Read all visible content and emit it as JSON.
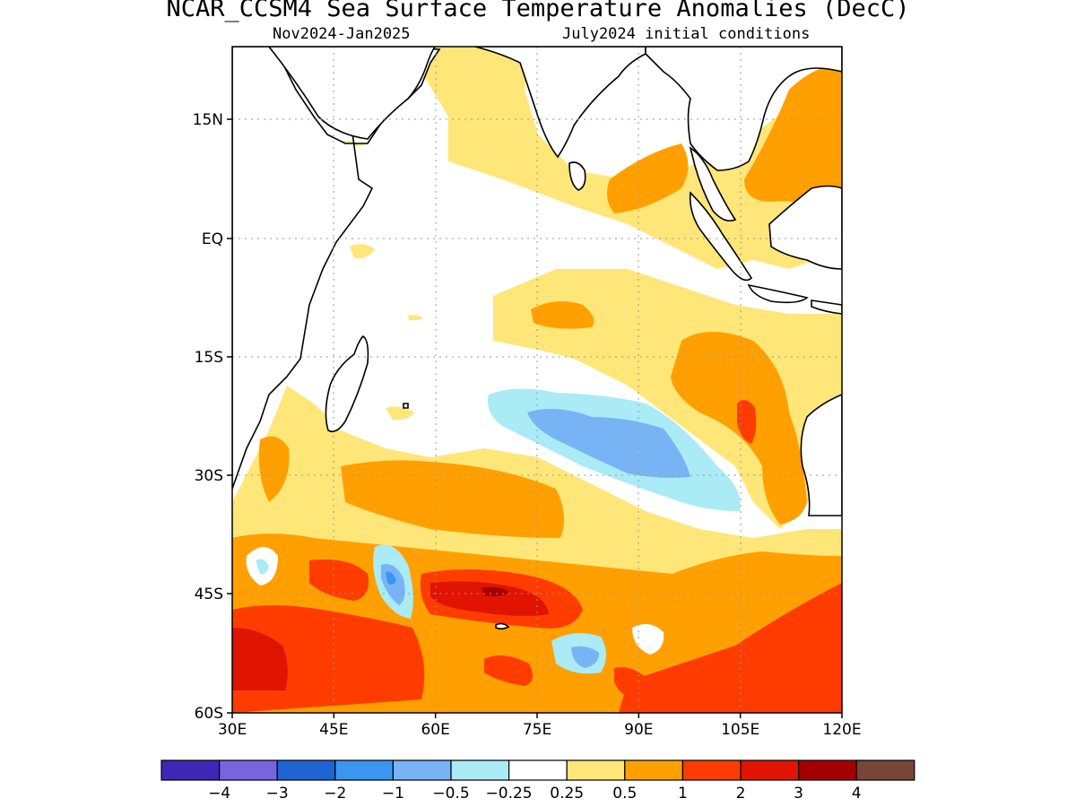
{
  "title": "NCAR_CCSM4 Sea Surface Temperature Anomalies (DecC)",
  "subtitle_left": "Nov2024-Jan2025",
  "subtitle_right": "July2024 initial conditions",
  "map": {
    "lon_range": [
      30,
      120
    ],
    "lat_range": [
      -60,
      24
    ],
    "lon_ticks": [
      "30E",
      "45E",
      "60E",
      "75E",
      "90E",
      "105E",
      "120E"
    ],
    "lat_ticks": [
      "15N",
      "EQ",
      "15S",
      "30S",
      "45S",
      "60S"
    ]
  },
  "colorbar": {
    "colors": [
      "#3c28b4",
      "#7864dc",
      "#1e64d2",
      "#3c96f0",
      "#78b4f5",
      "#aaebf5",
      "#ffffff",
      "#ffe678",
      "#ffa000",
      "#ff3c00",
      "#e01400",
      "#a50000",
      "#784638"
    ],
    "labels": [
      "−4",
      "−3",
      "−2",
      "−1",
      "−0.5",
      "−0.25",
      "0.25",
      "0.5",
      "1",
      "2",
      "3",
      "4"
    ]
  },
  "chart_data": {
    "type": "heatmap",
    "title": "NCAR_CCSM4 Sea Surface Temperature Anomalies (DecC)",
    "subtitle": "Nov2024-Jan2025   July2024 initial conditions",
    "x_range": [
      30,
      120
    ],
    "y_range": [
      -60,
      24
    ],
    "units": "DecC",
    "levels": [
      -4,
      -3,
      -2,
      -1,
      -0.5,
      -0.25,
      0.25,
      0.5,
      1,
      2,
      3,
      4
    ],
    "regions": [
      {
        "area": "Arabian Sea / northern Indian Ocean",
        "anomaly": "0.25 to 0.5"
      },
      {
        "area": "Bay of Bengal east, Andaman Sea",
        "anomaly": "0.5 to 1"
      },
      {
        "area": "South China Sea",
        "anomaly": "0.5 to 1"
      },
      {
        "area": "Equatorial central Indian Ocean",
        "anomaly": "-0.25 to 0.25"
      },
      {
        "area": "Subtropical south Indian Ocean near 20-30S, 75-90E",
        "anomaly": "-1 to -0.25"
      },
      {
        "area": "Off NW Australia",
        "anomaly": "0.5 to 2"
      },
      {
        "area": "Southern Indian Ocean 40-60S",
        "anomaly": "0.5 to 3"
      }
    ]
  }
}
